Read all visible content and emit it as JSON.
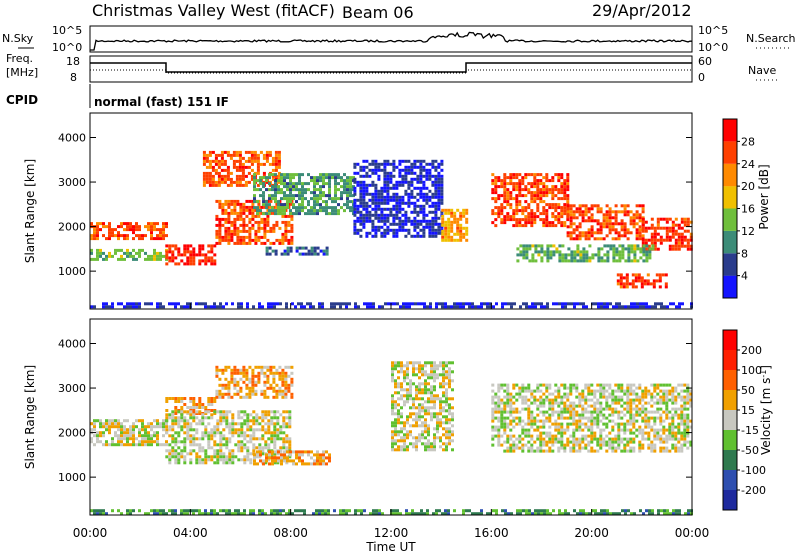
{
  "header": {
    "title": "Christmas Valley West (fitACF)",
    "beam": "Beam 06",
    "date": "29/Apr/2012"
  },
  "status_panels": {
    "nsky_label": "N.Sky",
    "nsky_ticks": [
      "10^5",
      "10^0"
    ],
    "nsearch_label": "N.Search",
    "freq_label_1": "Freq.",
    "freq_label_2": "[MHz]",
    "freq_ticks": [
      "18",
      "8"
    ],
    "nave_label": "Nave",
    "nave_ticks": [
      "60",
      "0"
    ],
    "cpid_label": "CPID",
    "cpid_value": "normal (fast) 151 IF"
  },
  "chart_data": [
    {
      "type": "heatmap",
      "quantity": "power",
      "ylabel": "Slant Range [km]",
      "yticks": [
        "1000",
        "2000",
        "3000",
        "4000"
      ],
      "ylim": [
        150,
        4550
      ],
      "colorbar_label": "Power [dB]",
      "colorbar_ticks": [
        "4",
        "8",
        "12",
        "16",
        "20",
        "24",
        "28"
      ],
      "colors": [
        "#1414ff",
        "#2a3c8c",
        "#3c8c78",
        "#6fbf3c",
        "#f0c000",
        "#ff8a00",
        "#ff4000",
        "#ff0000"
      ],
      "bands": [
        {
          "t0": 0.0,
          "t1": 3.0,
          "r0": 1700,
          "r1": 2100,
          "level": 0.8
        },
        {
          "t0": 0.0,
          "t1": 3.0,
          "r0": 1250,
          "r1": 1500,
          "level": 0.4
        },
        {
          "t0": 3.0,
          "t1": 5.0,
          "r0": 1150,
          "r1": 1600,
          "level": 0.88
        },
        {
          "t0": 5.0,
          "t1": 8.0,
          "r0": 1650,
          "r1": 2600,
          "level": 0.8
        },
        {
          "t0": 4.5,
          "t1": 7.5,
          "r0": 2900,
          "r1": 3700,
          "level": 0.78
        },
        {
          "t0": 6.5,
          "t1": 10.5,
          "r0": 2300,
          "r1": 3200,
          "level": 0.35
        },
        {
          "t0": 7.0,
          "t1": 9.5,
          "r0": 1350,
          "r1": 1550,
          "level": 0.22
        },
        {
          "t0": 10.5,
          "t1": 14.0,
          "r0": 1800,
          "r1": 3500,
          "level": 0.12
        },
        {
          "t0": 14.0,
          "t1": 15.0,
          "r0": 1700,
          "r1": 2400,
          "level": 0.65
        },
        {
          "t0": 16.0,
          "t1": 19.0,
          "r0": 2000,
          "r1": 3200,
          "level": 0.82
        },
        {
          "t0": 19.0,
          "t1": 22.0,
          "r0": 1700,
          "r1": 2500,
          "level": 0.8
        },
        {
          "t0": 22.0,
          "t1": 24.0,
          "r0": 1500,
          "r1": 2200,
          "level": 0.85
        },
        {
          "t0": 17.0,
          "t1": 22.5,
          "r0": 1200,
          "r1": 1600,
          "level": 0.4
        },
        {
          "t0": 21.0,
          "t1": 23.0,
          "r0": 650,
          "r1": 950,
          "level": 0.82
        },
        {
          "t0": 0.0,
          "t1": 24.0,
          "r0": 180,
          "r1": 300,
          "level": 0.12
        }
      ]
    },
    {
      "type": "heatmap",
      "quantity": "velocity",
      "ylabel": "Slant Range [km]",
      "yticks": [
        "1000",
        "2000",
        "3000",
        "4000"
      ],
      "ylim": [
        150,
        4550
      ],
      "xlabel": "Time UT",
      "xticks": [
        "00:00",
        "04:00",
        "08:00",
        "12:00",
        "16:00",
        "20:00",
        "00:00"
      ],
      "xlim": [
        0,
        24
      ],
      "colorbar_label": "Velocity [m s",
      "colorbar_label_sup": "-1",
      "colorbar_label_tail": "]",
      "colorbar_ticks": [
        "200",
        "100",
        "50",
        "15",
        "-15",
        "-50",
        "-100",
        "-200"
      ],
      "colors": [
        "#1e2a9e",
        "#2e4fb0",
        "#2f7a4f",
        "#60c030",
        "#c8c8c0",
        "#f0a000",
        "#ff6000",
        "#ff2000",
        "#ff0000"
      ],
      "bands": [
        {
          "t0": 0.0,
          "t1": 3.0,
          "r0": 1700,
          "r1": 2300,
          "level": 0.5
        },
        {
          "t0": 3.0,
          "t1": 5.0,
          "r0": 2400,
          "r1": 2800,
          "level": 0.62
        },
        {
          "t0": 3.0,
          "t1": 8.0,
          "r0": 1300,
          "r1": 2500,
          "level": 0.5
        },
        {
          "t0": 5.0,
          "t1": 8.0,
          "r0": 2800,
          "r1": 3500,
          "level": 0.62
        },
        {
          "t0": 6.5,
          "t1": 9.5,
          "r0": 1300,
          "r1": 1600,
          "level": 0.62
        },
        {
          "t0": 12.0,
          "t1": 14.5,
          "r0": 1600,
          "r1": 3600,
          "level": 0.5
        },
        {
          "t0": 16.0,
          "t1": 24.0,
          "r0": 1600,
          "r1": 3100,
          "level": 0.5
        },
        {
          "t0": 0.0,
          "t1": 24.0,
          "r0": 180,
          "r1": 280,
          "level": 0.32
        }
      ]
    }
  ]
}
